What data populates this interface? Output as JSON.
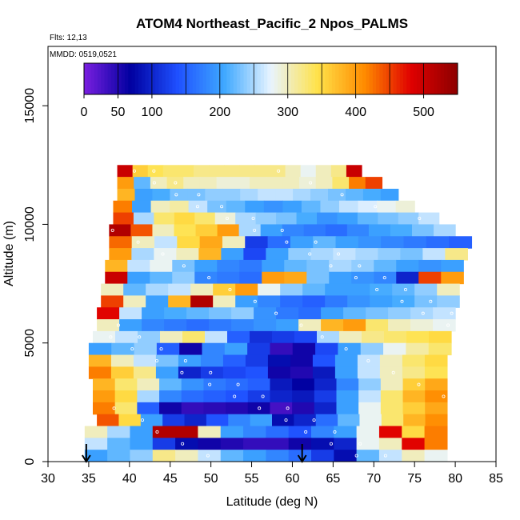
{
  "chart_data": {
    "type": "heatmap",
    "title": "ATOM4 Northeast_Pacific_2 Npos_PALMS",
    "subtitle_flights": "Flts: 12,13",
    "subtitle_dates": "MMDD: 0519,0521",
    "xlabel": "Latitude (deg N)",
    "ylabel": "Altitude (m)",
    "xlim": [
      30,
      85
    ],
    "ylim": [
      0,
      17500
    ],
    "x_ticks": [
      "30",
      "35",
      "40",
      "45",
      "50",
      "55",
      "60",
      "65",
      "70",
      "75",
      "80",
      "85"
    ],
    "y_ticks": [
      "0",
      "5000",
      "10000",
      "15000"
    ],
    "colorbar": {
      "range": [
        0,
        550
      ],
      "ticks": [
        "0",
        "50",
        "100",
        "200",
        "300",
        "400",
        "500"
      ],
      "colors": [
        "#7a1fe0",
        "#0000a0",
        "#1f50ff",
        "#3ea8ff",
        "#e8f4ff",
        "#ffe24a",
        "#ff8c00",
        "#e00000",
        "#8c0000"
      ]
    },
    "arrows": [
      {
        "lat": 34.7,
        "label": "arrow"
      },
      {
        "lat": 61.2,
        "label": "arrow"
      }
    ],
    "bands": [
      {
        "alt": [
          12000,
          12500
        ],
        "lat": [
          38.5,
          68.5
        ],
        "values": [
          500,
          360,
          340,
          330,
          330,
          320,
          320,
          320,
          320,
          320,
          320,
          300,
          280,
          300,
          320,
          500
        ]
      },
      {
        "alt": [
          11500,
          12000
        ],
        "lat": [
          38.5,
          71
        ],
        "values": [
          400,
          220,
          300,
          320,
          300,
          300,
          290,
          290,
          300,
          300,
          300,
          290,
          300,
          330,
          420,
          450
        ]
      },
      {
        "alt": [
          11000,
          11500
        ],
        "lat": [
          38.5,
          73
        ],
        "values": [
          380,
          200,
          210,
          230,
          230,
          240,
          240,
          250,
          260,
          260,
          250,
          240,
          230,
          220,
          210,
          200
        ]
      },
      {
        "alt": [
          10500,
          11000
        ],
        "lat": [
          38,
          75
        ],
        "values": [
          420,
          200,
          300,
          310,
          260,
          230,
          220,
          200,
          190,
          200,
          220,
          240,
          260,
          270,
          280,
          290
        ]
      },
      {
        "alt": [
          10000,
          10500
        ],
        "lat": [
          38,
          78
        ],
        "values": [
          450,
          250,
          330,
          350,
          330,
          290,
          250,
          240,
          230,
          210,
          190,
          200,
          220,
          230,
          240,
          260
        ]
      },
      {
        "alt": [
          9500,
          10000
        ],
        "lat": [
          37.5,
          80
        ],
        "values": [
          520,
          440,
          300,
          340,
          360,
          400,
          250,
          200,
          180,
          170,
          160,
          180,
          200,
          210,
          230,
          250
        ]
      },
      {
        "alt": [
          9000,
          9500
        ],
        "lat": [
          37.5,
          82
        ],
        "values": [
          430,
          300,
          260,
          350,
          390,
          300,
          120,
          160,
          200,
          220,
          200,
          190,
          180,
          170,
          160,
          150
        ]
      },
      {
        "alt": [
          8500,
          9000
        ],
        "lat": [
          37.5,
          81.5
        ],
        "values": [
          400,
          250,
          280,
          300,
          380,
          200,
          130,
          200,
          240,
          250,
          260,
          250,
          240,
          230,
          260,
          320
        ]
      },
      {
        "alt": [
          8000,
          8500
        ],
        "lat": [
          37,
          81
        ],
        "values": [
          380,
          260,
          280,
          230,
          200,
          180,
          170,
          200,
          220,
          230,
          250,
          240,
          220,
          200,
          190,
          200
        ]
      },
      {
        "alt": [
          7500,
          8000
        ],
        "lat": [
          37,
          81
        ],
        "values": [
          500,
          200,
          220,
          240,
          180,
          170,
          160,
          400,
          390,
          230,
          200,
          190,
          180,
          100,
          450,
          400
        ]
      },
      {
        "alt": [
          7000,
          7500
        ],
        "lat": [
          36.5,
          80.5
        ],
        "values": [
          300,
          220,
          250,
          260,
          300,
          360,
          400,
          280,
          240,
          220,
          200,
          200,
          210,
          220,
          240,
          300
        ]
      },
      {
        "alt": [
          6500,
          7000
        ],
        "lat": [
          36.5,
          80.5
        ],
        "values": [
          450,
          300,
          200,
          380,
          520,
          300,
          200,
          180,
          160,
          150,
          170,
          190,
          200,
          210,
          230,
          240
        ]
      },
      {
        "alt": [
          6000,
          6500
        ],
        "lat": [
          36,
          80
        ],
        "values": [
          480,
          260,
          200,
          210,
          220,
          230,
          240,
          190,
          170,
          160,
          200,
          220,
          230,
          240,
          250,
          260
        ]
      },
      {
        "alt": [
          5500,
          6000
        ],
        "lat": [
          36,
          80
        ],
        "values": [
          300,
          200,
          180,
          170,
          160,
          170,
          180,
          190,
          200,
          300,
          380,
          400,
          330,
          300,
          290,
          280
        ]
      },
      {
        "alt": [
          5000,
          5500
        ],
        "lat": [
          35.5,
          79.5
        ],
        "values": [
          280,
          260,
          240,
          300,
          330,
          260,
          150,
          110,
          120,
          130,
          250,
          300,
          320,
          330,
          340,
          350
        ]
      },
      {
        "alt": [
          4500,
          5000
        ],
        "lat": [
          35,
          79.5
        ],
        "values": [
          200,
          220,
          240,
          150,
          60,
          180,
          200,
          120,
          40,
          60,
          130,
          200,
          240,
          280,
          310,
          330
        ]
      },
      {
        "alt": [
          4000,
          4500
        ],
        "lat": [
          35,
          79
        ],
        "values": [
          380,
          300,
          260,
          230,
          200,
          180,
          150,
          120,
          80,
          60,
          140,
          200,
          260,
          300,
          330,
          350
        ]
      },
      {
        "alt": [
          3500,
          4000
        ],
        "lat": [
          35,
          79
        ],
        "values": [
          420,
          360,
          320,
          200,
          100,
          120,
          130,
          140,
          60,
          50,
          90,
          200,
          260,
          300,
          320,
          340
        ]
      },
      {
        "alt": [
          3000,
          3500
        ],
        "lat": [
          35.5,
          79
        ],
        "values": [
          380,
          330,
          300,
          220,
          190,
          170,
          160,
          150,
          90,
          70,
          100,
          180,
          240,
          300,
          360,
          390
        ]
      },
      {
        "alt": [
          2500,
          3000
        ],
        "lat": [
          35.5,
          79
        ],
        "values": [
          400,
          350,
          250,
          180,
          160,
          150,
          140,
          120,
          100,
          90,
          120,
          200,
          260,
          330,
          380,
          410
        ]
      },
      {
        "alt": [
          2000,
          2500
        ],
        "lat": [
          35.5,
          79
        ],
        "values": [
          420,
          330,
          150,
          60,
          40,
          45,
          50,
          60,
          30,
          50,
          100,
          200,
          280,
          330,
          360,
          390
        ]
      },
      {
        "alt": [
          1500,
          2000
        ],
        "lat": [
          36,
          79
        ],
        "values": [
          440,
          350,
          200,
          120,
          100,
          140,
          180,
          200,
          80,
          100,
          160,
          220,
          280,
          330,
          380,
          410
        ]
      },
      {
        "alt": [
          1000,
          1500
        ],
        "lat": [
          34.5,
          79
        ],
        "values": [
          300,
          250,
          200,
          520,
          520,
          300,
          200,
          180,
          160,
          140,
          180,
          200,
          280,
          480,
          350,
          420
        ]
      },
      {
        "alt": [
          500,
          1000
        ],
        "lat": [
          34.5,
          79
        ],
        "values": [
          260,
          220,
          200,
          120,
          80,
          60,
          50,
          40,
          40,
          60,
          80,
          100,
          280,
          300,
          480,
          420
        ]
      },
      {
        "alt": [
          0,
          500
        ],
        "lat": [
          34.5,
          79
        ],
        "values": [
          200,
          220,
          240,
          320,
          300,
          260,
          220,
          200,
          180,
          160,
          120,
          80,
          220,
          260,
          300,
          280
        ]
      }
    ]
  }
}
